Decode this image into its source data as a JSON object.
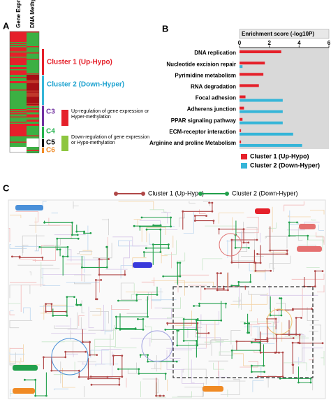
{
  "panels": {
    "a": "A",
    "b": "B",
    "c": "C"
  },
  "heatmap": {
    "columns": [
      "Gene Expression",
      "DNA Methylation"
    ],
    "clusters": [
      "Cluster 1 (Up-Hypo)",
      "Cluster 2 (Down-Hyper)",
      "C3",
      "C4",
      "C5",
      "C6"
    ],
    "legend": [
      "Up-regulation of gene expression or Hyper-methylation",
      "Down-regulation of gene expression or Hypo-methylation"
    ]
  },
  "chart_data": [
    {
      "type": "hbar",
      "title": "Enrichment score (-log10P)",
      "categories": [
        "DNA replication",
        "Nucleotide excision repair",
        "Pyrimidine metabolism",
        "RNA degradation",
        "Focal adhesion",
        "Adherens junction",
        "PPAR signaling pathway",
        "ECM-receptor interaction",
        "Arginine and proline Metabolism"
      ],
      "series": [
        {
          "name": "Cluster 1 (Up-Hypo)",
          "color": "#e5202a",
          "values": [
            2.8,
            1.7,
            1.6,
            1.3,
            0.4,
            0.3,
            0.2,
            0.1,
            0.1
          ]
        },
        {
          "name": "Cluster 2 (Down-Hyper)",
          "color": "#35b5d8",
          "values": [
            0,
            0.2,
            0,
            0,
            2.9,
            2.9,
            2.9,
            3.6,
            4.2
          ]
        }
      ],
      "xlim": [
        0,
        6
      ],
      "xticks": [
        0,
        2,
        4,
        6
      ]
    }
  ],
  "map_legend": [
    "Cluster 1 (Up-Hypo)",
    "Cluster 2 (Down-Hyper)"
  ]
}
